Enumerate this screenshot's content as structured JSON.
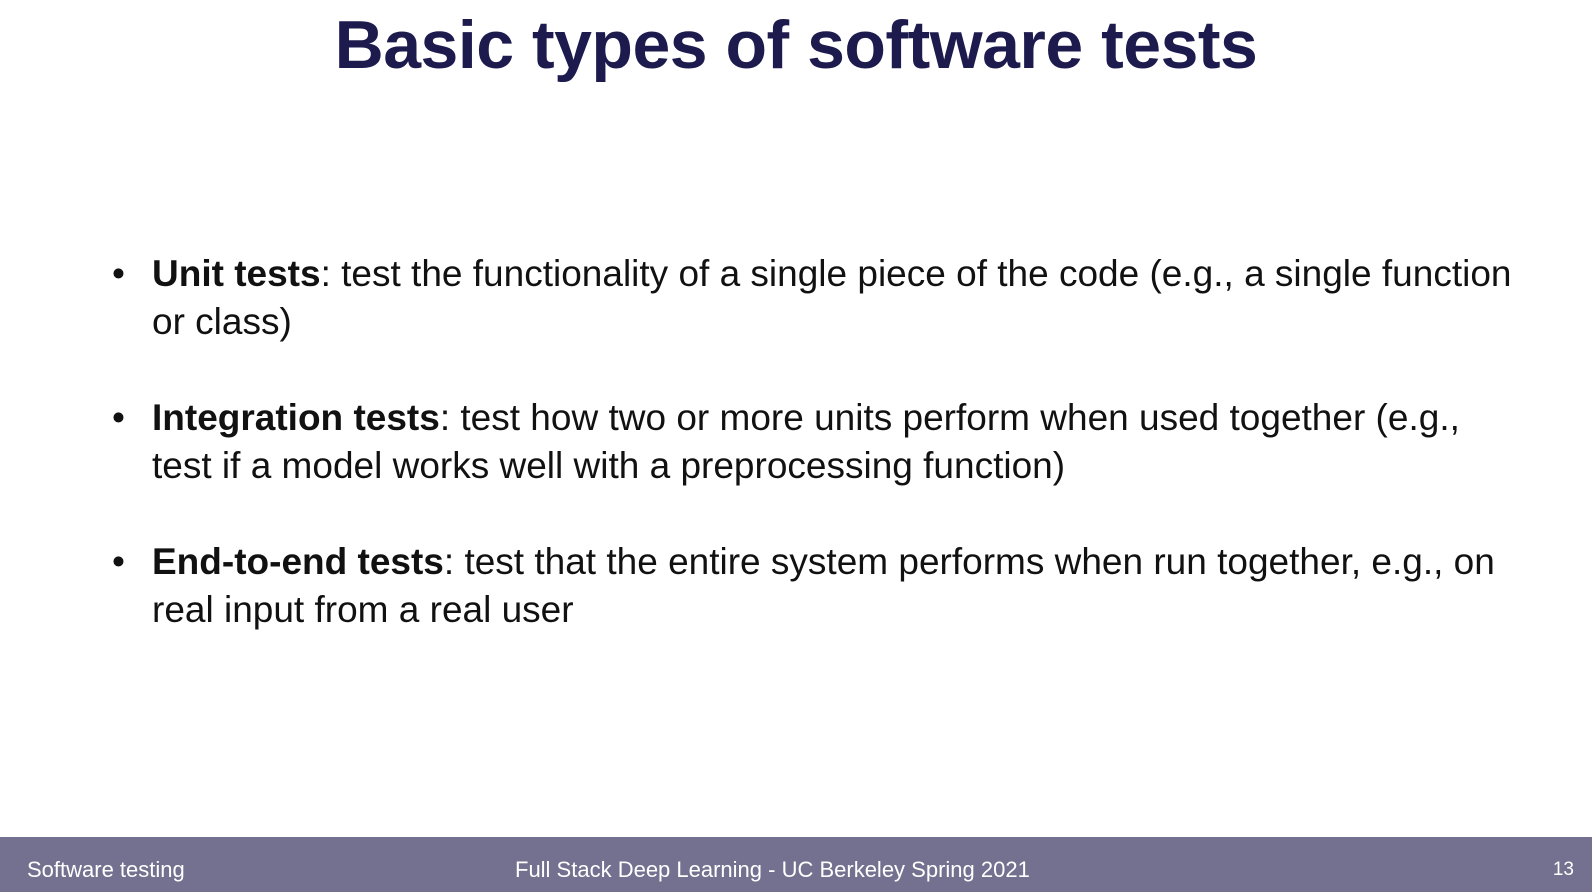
{
  "title": "Basic types of software tests",
  "bullets": [
    {
      "term": "Unit tests",
      "text": ": test the functionality of a single piece of the code (e.g., a single function or class)"
    },
    {
      "term": "Integration tests",
      "text": ": test how two or more units perform when used together (e.g., test if a model works well with a preprocessing function)"
    },
    {
      "term": "End-to-end tests",
      "text": ": test that the entire system performs when run together, e.g., on real input from a real user"
    }
  ],
  "footer": {
    "left": "Software testing",
    "center": "Full Stack Deep Learning - UC Berkeley Spring 2021",
    "page_number": "13",
    "background_color": "#74708f"
  },
  "title_color": "#1d1a4e"
}
